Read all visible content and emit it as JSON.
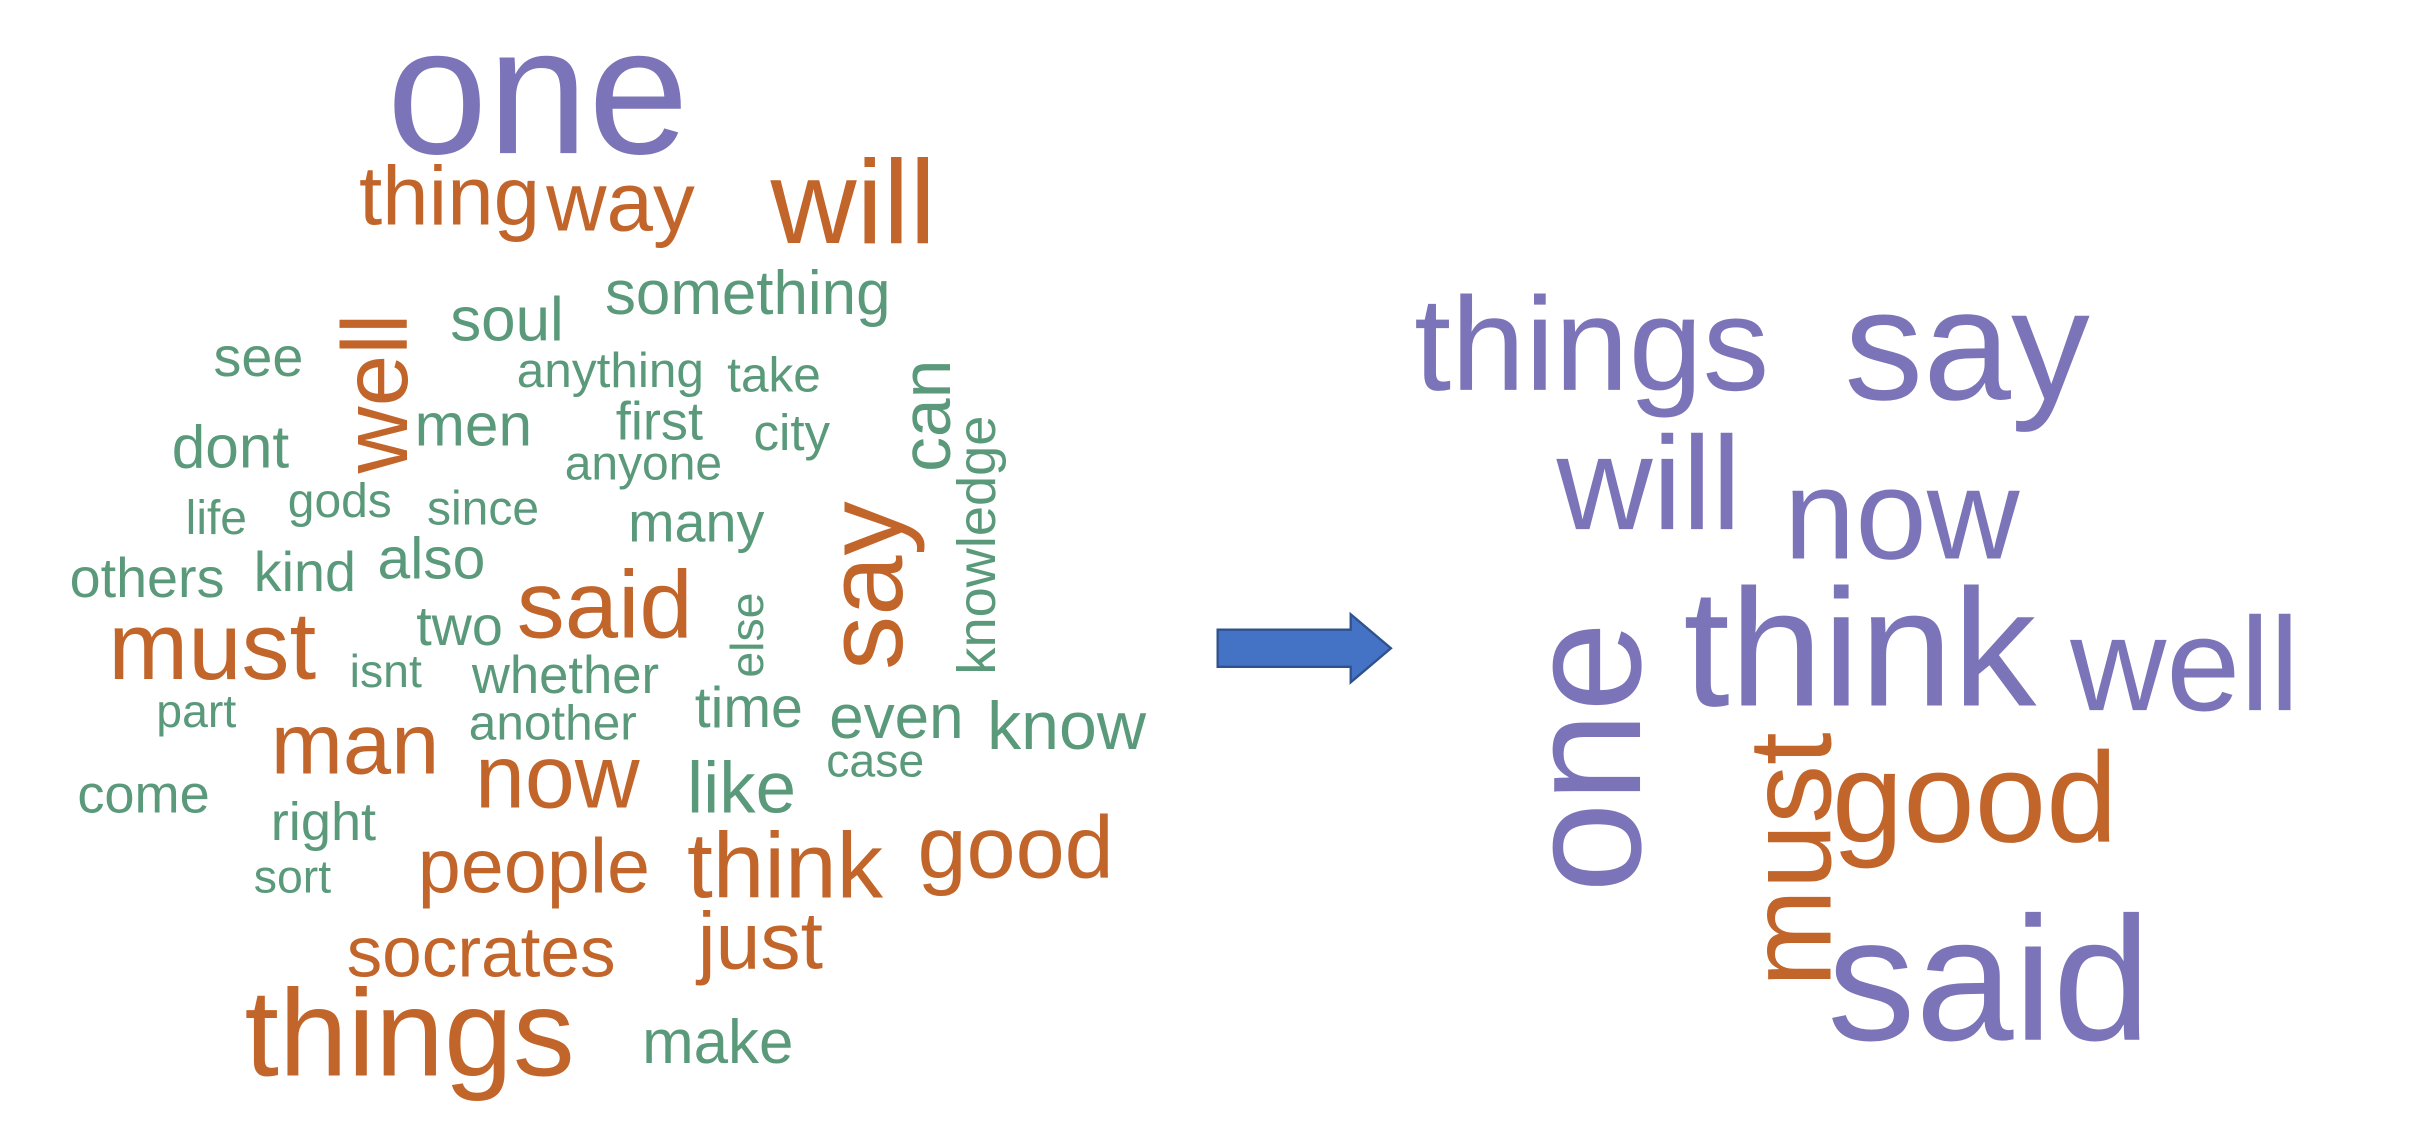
{
  "colors": {
    "purple": "#7B74B8",
    "orange": "#C2652A",
    "green": "#5A9A7B",
    "arrow_fill": "#4472C4",
    "arrow_stroke": "#2F528F"
  },
  "left_cloud": [
    {
      "text": "one",
      "color": "purple",
      "rotated": false
    },
    {
      "text": "thing",
      "color": "orange",
      "rotated": false
    },
    {
      "text": "way",
      "color": "orange",
      "rotated": false
    },
    {
      "text": "will",
      "color": "orange",
      "rotated": false
    },
    {
      "text": "something",
      "color": "green",
      "rotated": false
    },
    {
      "text": "soul",
      "color": "green",
      "rotated": false
    },
    {
      "text": "see",
      "color": "green",
      "rotated": false
    },
    {
      "text": "well",
      "color": "orange",
      "rotated": true
    },
    {
      "text": "anything",
      "color": "green",
      "rotated": false
    },
    {
      "text": "take",
      "color": "green",
      "rotated": false
    },
    {
      "text": "can",
      "color": "green",
      "rotated": true
    },
    {
      "text": "knowledge",
      "color": "green",
      "rotated": true
    },
    {
      "text": "dont",
      "color": "green",
      "rotated": false
    },
    {
      "text": "men",
      "color": "green",
      "rotated": false
    },
    {
      "text": "first",
      "color": "green",
      "rotated": false
    },
    {
      "text": "city",
      "color": "green",
      "rotated": false
    },
    {
      "text": "anyone",
      "color": "green",
      "rotated": false
    },
    {
      "text": "life",
      "color": "green",
      "rotated": false
    },
    {
      "text": "gods",
      "color": "green",
      "rotated": false
    },
    {
      "text": "since",
      "color": "green",
      "rotated": false
    },
    {
      "text": "many",
      "color": "green",
      "rotated": false
    },
    {
      "text": "say",
      "color": "orange",
      "rotated": true
    },
    {
      "text": "others",
      "color": "green",
      "rotated": false
    },
    {
      "text": "kind",
      "color": "green",
      "rotated": false
    },
    {
      "text": "also",
      "color": "green",
      "rotated": false
    },
    {
      "text": "said",
      "color": "orange",
      "rotated": false
    },
    {
      "text": "else",
      "color": "green",
      "rotated": true
    },
    {
      "text": "must",
      "color": "orange",
      "rotated": false
    },
    {
      "text": "two",
      "color": "green",
      "rotated": false
    },
    {
      "text": "isnt",
      "color": "green",
      "rotated": false
    },
    {
      "text": "whether",
      "color": "green",
      "rotated": false
    },
    {
      "text": "part",
      "color": "green",
      "rotated": false
    },
    {
      "text": "man",
      "color": "orange",
      "rotated": false
    },
    {
      "text": "another",
      "color": "green",
      "rotated": false
    },
    {
      "text": "time",
      "color": "green",
      "rotated": false
    },
    {
      "text": "even",
      "color": "green",
      "rotated": false
    },
    {
      "text": "know",
      "color": "green",
      "rotated": false
    },
    {
      "text": "case",
      "color": "green",
      "rotated": false
    },
    {
      "text": "come",
      "color": "green",
      "rotated": false
    },
    {
      "text": "now",
      "color": "orange",
      "rotated": false
    },
    {
      "text": "like",
      "color": "green",
      "rotated": false
    },
    {
      "text": "right",
      "color": "green",
      "rotated": false
    },
    {
      "text": "people",
      "color": "orange",
      "rotated": false
    },
    {
      "text": "think",
      "color": "orange",
      "rotated": false
    },
    {
      "text": "good",
      "color": "orange",
      "rotated": false
    },
    {
      "text": "sort",
      "color": "green",
      "rotated": false
    },
    {
      "text": "socrates",
      "color": "orange",
      "rotated": false
    },
    {
      "text": "just",
      "color": "orange",
      "rotated": false
    },
    {
      "text": "things",
      "color": "orange",
      "rotated": false
    },
    {
      "text": "make",
      "color": "green",
      "rotated": false
    }
  ],
  "right_cloud": [
    {
      "text": "things",
      "color": "purple",
      "rotated": false
    },
    {
      "text": "say",
      "color": "purple",
      "rotated": false
    },
    {
      "text": "will",
      "color": "purple",
      "rotated": false
    },
    {
      "text": "now",
      "color": "purple",
      "rotated": false
    },
    {
      "text": "one",
      "color": "purple",
      "rotated": true
    },
    {
      "text": "think",
      "color": "purple",
      "rotated": false
    },
    {
      "text": "well",
      "color": "purple",
      "rotated": false
    },
    {
      "text": "must",
      "color": "orange",
      "rotated": true
    },
    {
      "text": "good",
      "color": "orange",
      "rotated": false
    },
    {
      "text": "said",
      "color": "purple",
      "rotated": false
    }
  ]
}
